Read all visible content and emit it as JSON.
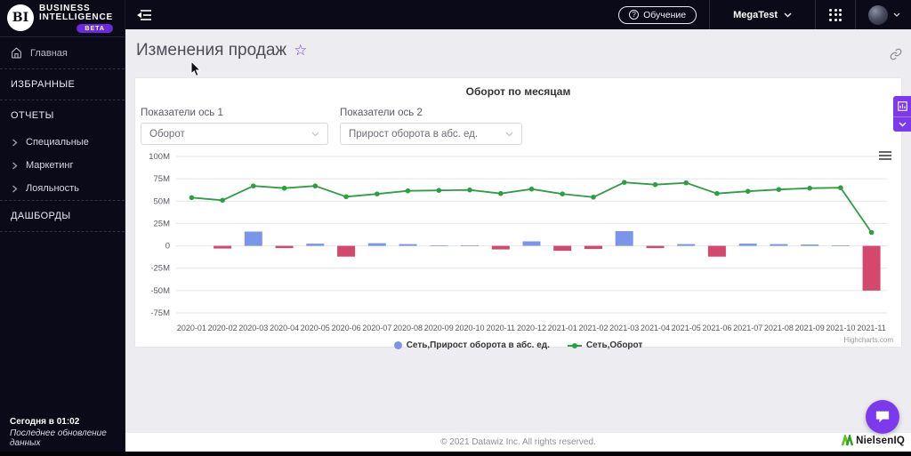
{
  "colors": {
    "dark_bg": "#0a0a19",
    "accent_purple": "#7c3aed",
    "beta_purple": "#6d28d9",
    "bar_positive": "#7b96e8",
    "bar_negative": "#d4486e",
    "line_green": "#2e9e44",
    "main_bg": "#ededf1"
  },
  "icons": {
    "star": "☆",
    "question": "?"
  },
  "app": {
    "logo_bi": "BI",
    "logo_line1": "BUSINESS",
    "logo_line2": "INTELLIGENCE",
    "beta_badge": "BETA"
  },
  "topbar": {
    "training_label": "Обучение",
    "workspace": "MegaTest"
  },
  "sidebar": {
    "home": "Главная",
    "sections": [
      {
        "label": "ИЗБРАННЫЕ",
        "items": []
      },
      {
        "label": "ОТЧЕТЫ",
        "items": [
          "Специальные",
          "Маркетинг",
          "Лояльность"
        ]
      },
      {
        "label": "ДАШБОРДЫ",
        "items": []
      }
    ],
    "last_update_time": "Сегодня в 01:02",
    "last_update_caption": "Последнее обновление данных"
  },
  "page": {
    "title": "Изменения продаж"
  },
  "controls": {
    "axis1_label": "Показатели ось 1",
    "axis1_value": "Оборот",
    "axis2_label": "Показатели ось 2",
    "axis2_value": "Прирост оборота в абс. ед."
  },
  "chart_data": {
    "type": "combo",
    "title": "Оборот по месяцам",
    "unit": "M",
    "categories": [
      "2020-01",
      "2020-02",
      "2020-03",
      "2020-04",
      "2020-05",
      "2020-06",
      "2020-07",
      "2020-08",
      "2020-09",
      "2020-10",
      "2020-11",
      "2020-12",
      "2021-01",
      "2021-02",
      "2021-03",
      "2021-04",
      "2021-05",
      "2021-06",
      "2021-07",
      "2021-08",
      "2021-09",
      "2021-10",
      "2021-11"
    ],
    "series": [
      {
        "name": "Сеть,Прирост оборота в абс. ед.",
        "type": "bar",
        "color_positive": "#7b96e8",
        "color_negative": "#d4486e",
        "values": [
          null,
          -3,
          16,
          -2.5,
          2.5,
          -12,
          3,
          2,
          0.5,
          0.5,
          -4,
          5,
          -5.5,
          -3.5,
          16.5,
          -2.5,
          2,
          -12,
          2.5,
          2,
          1.5,
          0.5,
          -50
        ]
      },
      {
        "name": "Сеть,Оборот",
        "type": "line",
        "color": "#2e9e44",
        "values": [
          54,
          51,
          67,
          64.5,
          67,
          55,
          58,
          61.5,
          62,
          62.5,
          58.5,
          63.5,
          58,
          54.5,
          71,
          68.5,
          70.5,
          58.5,
          61,
          63,
          64.5,
          65,
          15
        ]
      }
    ],
    "yticks": [
      {
        "v": 100,
        "label": "100M"
      },
      {
        "v": 75,
        "label": "75M"
      },
      {
        "v": 50,
        "label": "50M"
      },
      {
        "v": 25,
        "label": "25M"
      },
      {
        "v": 0,
        "label": "0"
      },
      {
        "v": -25,
        "label": "-25M"
      },
      {
        "v": -50,
        "label": "-50M"
      },
      {
        "v": -75,
        "label": "-75M"
      }
    ],
    "ylim": [
      -75,
      100
    ],
    "grid": true,
    "legend_position": "bottom",
    "credits": "Highcharts.com"
  },
  "footer": {
    "copyright": "© 2021 Datawiz Inc. All rights reserved.",
    "brand": "NielsenIQ"
  }
}
